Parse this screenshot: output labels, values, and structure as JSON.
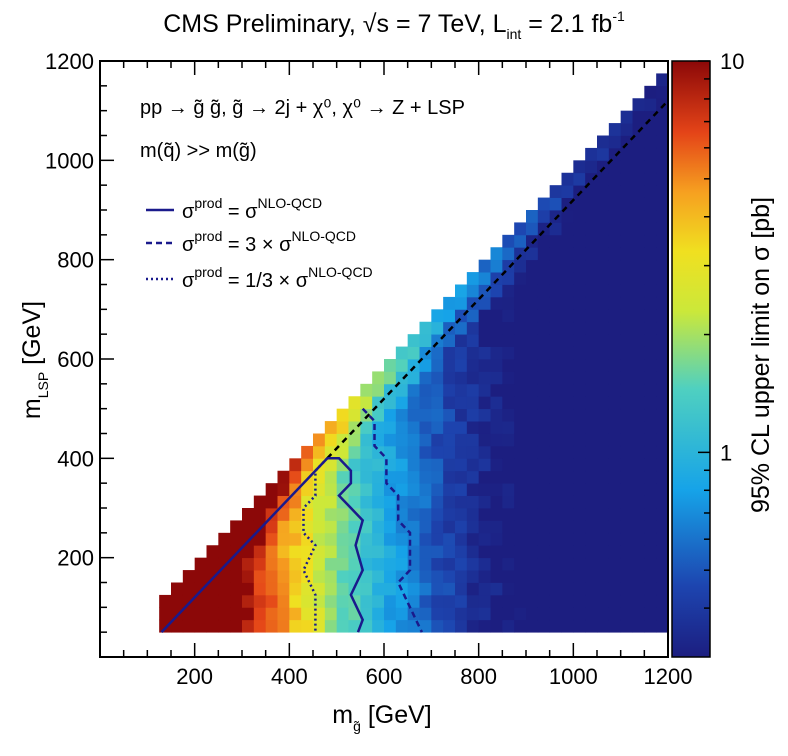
{
  "header": {
    "title_prefix": "CMS Preliminary, ",
    "sqrt_symbol": "√",
    "title_energy": "s = 7 TeV, L",
    "title_lumi_sub": "int",
    "title_lumi_value": " = 2.1 fb",
    "title_lumi_sup": "-1"
  },
  "annotations": {
    "process": "pp → g̃ g̃, g̃ → 2j + χ⁰, χ⁰ → Z + LSP",
    "mass_hierarchy": "m(q̃) >> m(g̃)"
  },
  "legend": [
    {
      "sigma": "σ",
      "sup_prod": "prod",
      "relation": " = σ",
      "sup_nlo": "NLO-QCD",
      "style": "solid"
    },
    {
      "sigma": "σ",
      "sup_prod": "prod",
      "relation": " = 3 × σ",
      "sup_nlo": "NLO-QCD",
      "style": "dashed"
    },
    {
      "sigma": "σ",
      "sup_prod": "prod",
      "relation": " = 1/3 × σ",
      "sup_nlo": "NLO-QCD",
      "style": "dotted"
    }
  ],
  "colors": {
    "contour": "#1a1a8c",
    "diagonal": "#000000"
  },
  "chart_data": {
    "type": "heatmap",
    "title": "CMS Preliminary, √s = 7 TeV, L_int = 2.1 fb^-1",
    "xlabel": "m",
    "xlabel_sub": "g̃",
    "xlabel_unit": " [GeV]",
    "ylabel": "m",
    "ylabel_sub": "LSP",
    "ylabel_unit": " [GeV]",
    "xlim": [
      0,
      1200
    ],
    "ylim": [
      0,
      1200
    ],
    "xticks": [
      200,
      400,
      600,
      800,
      1000,
      1200
    ],
    "yticks": [
      200,
      400,
      600,
      800,
      1000,
      1200
    ],
    "colorbar": {
      "label": "95% CL upper limit on σ [pb]",
      "scale": "log",
      "range": [
        0.3,
        10
      ],
      "tick_labels": [
        {
          "value": 10,
          "label": "10"
        },
        {
          "value": 1,
          "label": "1"
        }
      ]
    },
    "bin_width_gev": 25,
    "bin_start_x": 125,
    "bin_start_y": 50,
    "kinematic_limit": "m_LSP = m_gluino",
    "contours": {
      "nominal": [
        [
          480,
          400
        ],
        [
          505,
          400
        ],
        [
          530,
          375
        ],
        [
          530,
          350
        ],
        [
          505,
          325
        ],
        [
          530,
          300
        ],
        [
          555,
          275
        ],
        [
          540,
          225
        ],
        [
          555,
          175
        ],
        [
          530,
          125
        ],
        [
          555,
          75
        ],
        [
          545,
          50
        ]
      ],
      "times3": [
        [
          555,
          500
        ],
        [
          580,
          475
        ],
        [
          580,
          425
        ],
        [
          605,
          400
        ],
        [
          605,
          350
        ],
        [
          630,
          325
        ],
        [
          630,
          275
        ],
        [
          655,
          250
        ],
        [
          655,
          175
        ],
        [
          630,
          150
        ],
        [
          655,
          100
        ],
        [
          680,
          50
        ]
      ],
      "third": [
        [
          480,
          400
        ],
        [
          455,
          375
        ],
        [
          455,
          325
        ],
        [
          430,
          300
        ],
        [
          430,
          250
        ],
        [
          455,
          225
        ],
        [
          430,
          175
        ],
        [
          455,
          125
        ],
        [
          455,
          50
        ]
      ]
    }
  }
}
